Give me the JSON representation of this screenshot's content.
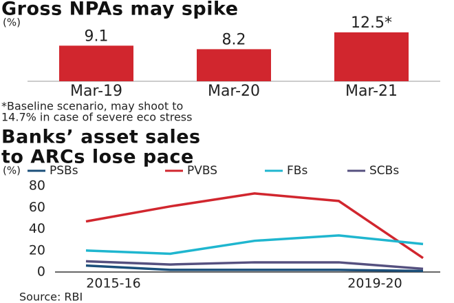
{
  "chart_data": [
    {
      "type": "bar",
      "title": "Gross NPAs may spike",
      "subtitle": "(%)",
      "categories": [
        "Mar-19",
        "Mar-20",
        "Mar-21"
      ],
      "values": [
        9.1,
        8.2,
        12.5
      ],
      "value_labels": [
        "9.1",
        "8.2",
        "12.5*"
      ],
      "color": "#d1262e",
      "note": [
        "*Baseline scenario, may shoot to",
        "14.7% in case of severe eco stress"
      ]
    },
    {
      "type": "line",
      "title": [
        "Banks’ asset sales",
        "to ARCs lose pace"
      ],
      "subtitle": "(%)",
      "categories": [
        "2015-16",
        null,
        null,
        null,
        "2019-20"
      ],
      "series": [
        {
          "name": "PSBs",
          "color": "#1b4f7a",
          "values": [
            6,
            2,
            2,
            2,
            1
          ]
        },
        {
          "name": "PVBS",
          "color": "#d1262e",
          "values": [
            47,
            61,
            73,
            66,
            13
          ]
        },
        {
          "name": "FBs",
          "color": "#1fb6cf",
          "values": [
            20,
            17,
            29,
            34,
            26
          ]
        },
        {
          "name": "SCBs",
          "color": "#55507f",
          "values": [
            10,
            7,
            9,
            9,
            3
          ]
        }
      ],
      "ylim": [
        0,
        80
      ],
      "yticks": [
        0,
        20,
        40,
        60,
        80
      ],
      "legend": "top",
      "source": "Source: RBI"
    }
  ]
}
